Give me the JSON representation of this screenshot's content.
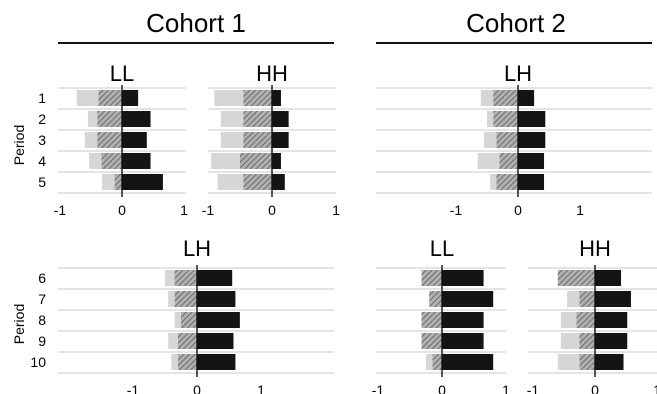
{
  "colors": {
    "light": "#d6d6d6",
    "hatch": "#8a8a8a",
    "dark": "#141414",
    "grid": "#c8c8c8"
  },
  "cohorts": [
    {
      "title": "Cohort 1"
    },
    {
      "title": "Cohort 2"
    }
  ],
  "chart_data": [
    {
      "type": "bar",
      "stacked": true,
      "orientation": "horizontal",
      "title": "LL",
      "cohort": "Cohort 1",
      "categories": [
        "1",
        "2",
        "3",
        "4",
        "5"
      ],
      "ylabel": "Period",
      "xlim": [
        -1,
        1
      ],
      "xticks": [
        "-1",
        "0",
        "1"
      ],
      "series": [
        {
          "values": [
            -0.35,
            -0.15,
            -0.2,
            -0.2,
            -0.2
          ]
        },
        {
          "values": [
            -0.38,
            -0.4,
            -0.4,
            -0.33,
            -0.12
          ]
        },
        {
          "values": [
            0.26,
            0.46,
            0.4,
            0.46,
            0.66
          ]
        }
      ]
    },
    {
      "type": "bar",
      "stacked": true,
      "orientation": "horizontal",
      "title": "HH",
      "cohort": "Cohort 1",
      "categories": [
        "1",
        "2",
        "3",
        "4",
        "5"
      ],
      "xlim": [
        -1,
        1
      ],
      "xticks": [
        "-1",
        "0",
        "1"
      ],
      "series": [
        {
          "values": [
            -0.45,
            -0.35,
            -0.35,
            -0.45,
            -0.4
          ]
        },
        {
          "values": [
            -0.45,
            -0.45,
            -0.45,
            -0.5,
            -0.45
          ]
        },
        {
          "values": [
            0.14,
            0.26,
            0.26,
            0.14,
            0.2
          ]
        }
      ]
    },
    {
      "type": "bar",
      "stacked": true,
      "orientation": "horizontal",
      "title": "LH",
      "cohort": "Cohort 2",
      "categories": [
        "1",
        "2",
        "3",
        "4",
        "5"
      ],
      "xlim": [
        -1,
        1
      ],
      "xticks": [
        "-1",
        "0",
        "1"
      ],
      "series": [
        {
          "values": [
            -0.2,
            -0.1,
            -0.2,
            -0.35,
            -0.1
          ]
        },
        {
          "values": [
            -0.4,
            -0.4,
            -0.35,
            -0.3,
            -0.35
          ]
        },
        {
          "values": [
            0.26,
            0.44,
            0.44,
            0.42,
            0.42
          ]
        }
      ]
    },
    {
      "type": "bar",
      "stacked": true,
      "orientation": "horizontal",
      "title": "LH",
      "cohort": "Cohort 1",
      "categories": [
        "6",
        "7",
        "8",
        "9",
        "10"
      ],
      "ylabel": "Period",
      "xlim": [
        -1,
        1
      ],
      "xticks": [
        "-1",
        "0",
        "1"
      ],
      "series": [
        {
          "values": [
            -0.15,
            -0.1,
            -0.1,
            -0.15,
            -0.1
          ]
        },
        {
          "values": [
            -0.35,
            -0.35,
            -0.25,
            -0.3,
            -0.3
          ]
        },
        {
          "values": [
            0.55,
            0.6,
            0.67,
            0.57,
            0.6
          ]
        }
      ]
    },
    {
      "type": "bar",
      "stacked": true,
      "orientation": "horizontal",
      "title": "LL",
      "cohort": "Cohort 2",
      "categories": [
        "6",
        "7",
        "8",
        "9",
        "10"
      ],
      "xlim": [
        -1,
        1
      ],
      "xticks": [
        "-1",
        "0",
        "1"
      ],
      "series": [
        {
          "values": [
            0,
            0,
            0,
            0,
            -0.1
          ]
        },
        {
          "values": [
            -0.32,
            -0.2,
            -0.32,
            -0.32,
            -0.15
          ]
        },
        {
          "values": [
            0.65,
            0.8,
            0.65,
            0.65,
            0.8
          ]
        }
      ]
    },
    {
      "type": "bar",
      "stacked": true,
      "orientation": "horizontal",
      "title": "HH",
      "cohort": "Cohort 2",
      "categories": [
        "6",
        "7",
        "8",
        "9",
        "10"
      ],
      "xlim": [
        -1,
        1
      ],
      "xticks": [
        "-1",
        "0",
        "1"
      ],
      "series": [
        {
          "values": [
            0,
            -0.2,
            -0.25,
            -0.3,
            -0.35
          ]
        },
        {
          "values": [
            -0.6,
            -0.25,
            -0.3,
            -0.25,
            -0.25
          ]
        },
        {
          "values": [
            0.42,
            0.58,
            0.52,
            0.52,
            0.46
          ]
        }
      ]
    }
  ]
}
